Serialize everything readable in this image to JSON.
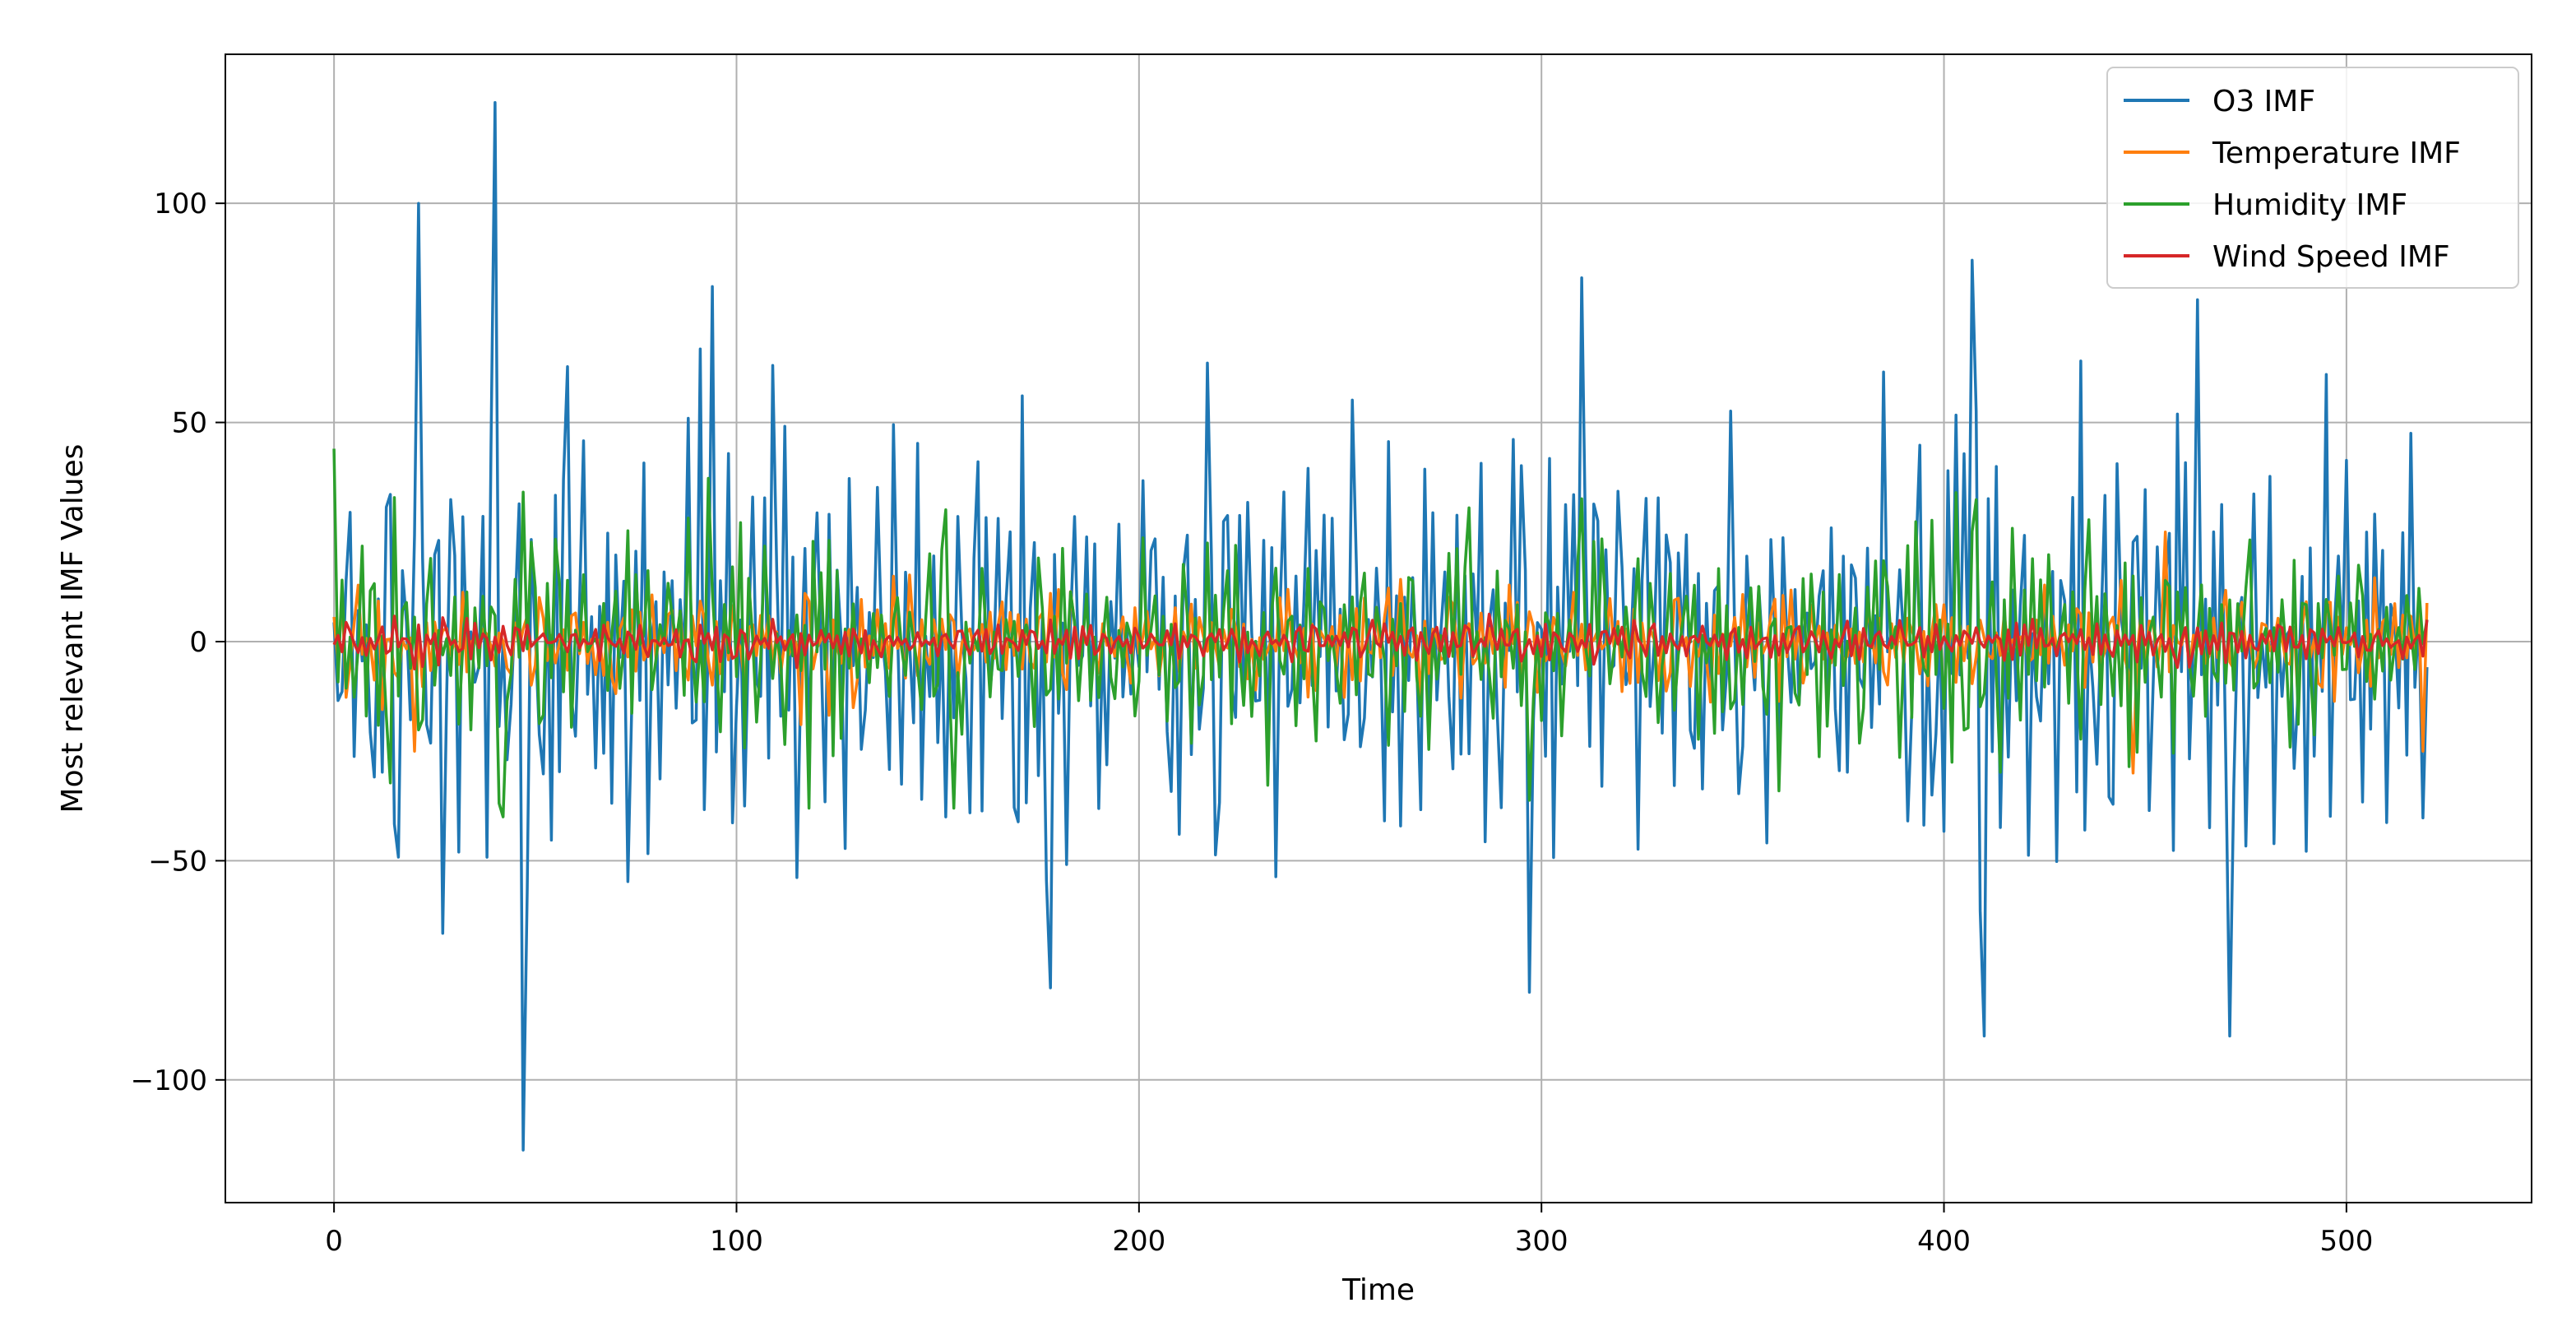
{
  "chart_data": {
    "type": "line",
    "xlabel": "Time",
    "ylabel": "Most relevant IMF Values",
    "xlim": [
      -27,
      546
    ],
    "ylim": [
      -128,
      134
    ],
    "xticks": [
      0,
      100,
      200,
      300,
      400,
      500
    ],
    "yticks": [
      -100,
      -50,
      0,
      50,
      100
    ],
    "xtick_labels": [
      "0",
      "100",
      "200",
      "300",
      "400",
      "500"
    ],
    "ytick_labels": [
      "−100",
      "−50",
      "0",
      "50",
      "100"
    ],
    "grid": true,
    "legend_position": "top-right",
    "x_range": [
      0,
      520
    ],
    "series": [
      {
        "name": "O3 IMF",
        "color": "#1f77b4",
        "amplitude": 45,
        "peaks": [
          [
            21,
            100
          ],
          [
            40,
            123
          ],
          [
            47,
            -116
          ],
          [
            94,
            81
          ],
          [
            178,
            -79
          ],
          [
            297,
            -80
          ],
          [
            310,
            83
          ],
          [
            407,
            87
          ],
          [
            410,
            -90
          ],
          [
            463,
            78
          ],
          [
            471,
            -90
          ]
        ]
      },
      {
        "name": "Temperature IMF",
        "color": "#ff7f0e",
        "amplitude": 10,
        "peaks": [
          [
            20,
            -25
          ],
          [
            447,
            -30
          ],
          [
            455,
            25
          ],
          [
            519,
            -25
          ]
        ]
      },
      {
        "name": "Humidity IMF",
        "color": "#2ca02c",
        "amplitude": 22,
        "peaks": [
          [
            0,
            44
          ],
          [
            42,
            -40
          ],
          [
            118,
            -38
          ],
          [
            154,
            -38
          ]
        ]
      },
      {
        "name": "Wind Speed IMF",
        "color": "#d62728",
        "amplitude": 4,
        "peaks": []
      }
    ]
  }
}
